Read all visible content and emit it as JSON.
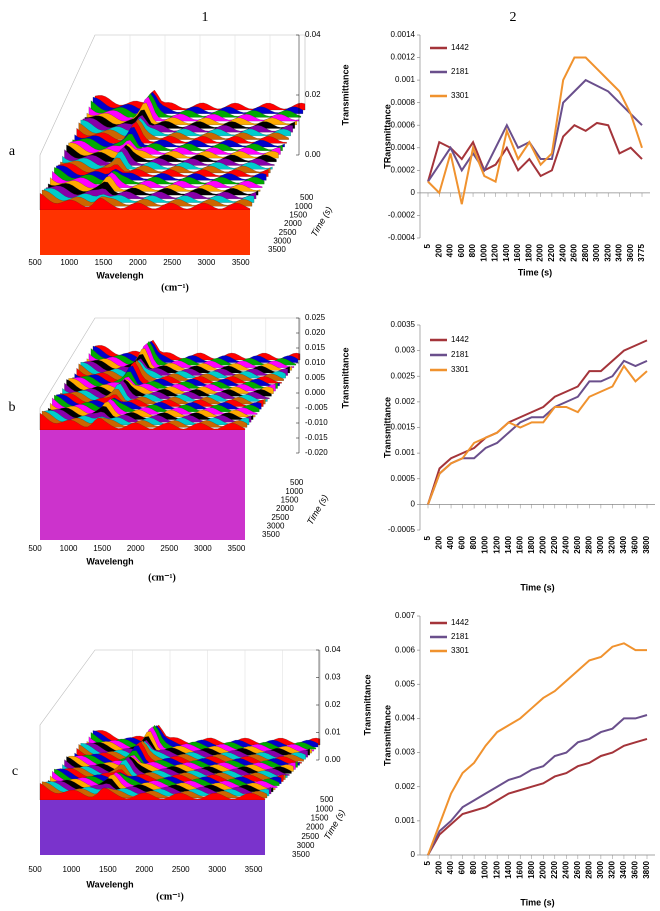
{
  "column_labels": [
    "1",
    "2"
  ],
  "row_labels": [
    "a",
    "b",
    "c"
  ],
  "chart_data": [
    {
      "type": "waterfall3d",
      "x_label": "Wavelengh",
      "x_unit": "(cm⁻¹)",
      "depth_label": "Time (s)",
      "z_label": "Transmittance",
      "xlim": [
        500,
        4000
      ],
      "xticks": [
        500,
        1000,
        1500,
        2000,
        2500,
        3000,
        3500
      ],
      "depth_lim": [
        500,
        3500
      ],
      "depth_ticks": [
        500,
        1000,
        1500,
        2000,
        2500,
        3000,
        3500
      ],
      "zlim": [
        0,
        0.04
      ],
      "zticks": [
        {
          "value": 0,
          "label": "0.00"
        },
        {
          "value": 0.02,
          "label": "0.02"
        },
        {
          "value": 0.04,
          "label": "0.04"
        }
      ]
    },
    {
      "type": "line",
      "x_label": "Time (s)",
      "y_label": "TRansmittance",
      "categories": [
        "5",
        "200",
        "400",
        "600",
        "800",
        "1000",
        "1200",
        "1400",
        "1600",
        "1800",
        "2000",
        "2200",
        "2400",
        "2600",
        "2800",
        "3000",
        "3200",
        "3400",
        "3600",
        "3775"
      ],
      "ylim": [
        -0.0004,
        0.0014
      ],
      "yticks": [
        -0.0004,
        -0.0002,
        0,
        0.0002,
        0.0004,
        0.0006,
        0.0008,
        0.001,
        0.0012,
        0.0014
      ],
      "series": [
        {
          "name": "1442",
          "color": "#a4343a",
          "values": [
            0.0001,
            0.00045,
            0.0004,
            0.0003,
            0.00045,
            0.0002,
            0.00025,
            0.0004,
            0.0002,
            0.0003,
            0.00015,
            0.0002,
            0.0005,
            0.0006,
            0.00055,
            0.00062,
            0.0006,
            0.00035,
            0.0004,
            0.0003
          ]
        },
        {
          "name": "2181",
          "color": "#6a4f8c",
          "values": [
            0.0001,
            0.00025,
            0.0004,
            0.0002,
            0.00035,
            0.0002,
            0.0004,
            0.0006,
            0.0004,
            0.00045,
            0.0003,
            0.0003,
            0.0008,
            0.0009,
            0.001,
            0.00095,
            0.0009,
            0.0008,
            0.0007,
            0.0006
          ]
        },
        {
          "name": "3301",
          "color": "#f0922e",
          "values": [
            0.0001,
            0,
            0.00035,
            -0.0001,
            0.0004,
            0.00015,
            0.0001,
            0.00055,
            0.0003,
            0.00045,
            0.00025,
            0.00035,
            0.001,
            0.0012,
            0.0012,
            0.0011,
            0.001,
            0.0009,
            0.0007,
            0.0004
          ]
        }
      ]
    },
    {
      "type": "waterfall3d",
      "x_label": "Wavelengh",
      "x_unit": "(cm⁻¹)",
      "depth_label": "Time (s)",
      "z_label": "Transmittance",
      "xlim": [
        500,
        4000
      ],
      "xticks": [
        500,
        1000,
        1500,
        2000,
        2500,
        3000,
        3500
      ],
      "depth_lim": [
        500,
        3500
      ],
      "depth_ticks": [
        500,
        1000,
        1500,
        2000,
        2500,
        3000,
        3500
      ],
      "zlim": [
        -0.02,
        0.025
      ],
      "zticks": [
        {
          "value": 0.025,
          "label": "0.025"
        },
        {
          "value": 0.02,
          "label": "0.020"
        },
        {
          "value": 0.015,
          "label": "0.015"
        },
        {
          "value": 0.01,
          "label": "0.010"
        },
        {
          "value": 0.005,
          "label": "0.005"
        },
        {
          "value": 0,
          "label": "0.000"
        },
        {
          "value": -0.005,
          "label": "-0.005"
        },
        {
          "value": -0.01,
          "label": "-0.010"
        },
        {
          "value": -0.015,
          "label": "-0.015"
        },
        {
          "value": -0.02,
          "label": "-0.020"
        }
      ]
    },
    {
      "type": "line",
      "x_label": "Time (s)",
      "y_label": "Transmittance",
      "categories": [
        "5",
        "200",
        "400",
        "600",
        "800",
        "1000",
        "1200",
        "1400",
        "1600",
        "1800",
        "2000",
        "2200",
        "2400",
        "2600",
        "2800",
        "3000",
        "3200",
        "3400",
        "3600",
        "3800"
      ],
      "ylim": [
        -0.0005,
        0.0035
      ],
      "yticks": [
        -0.0005,
        0,
        0.0005,
        0.001,
        0.0015,
        0.002,
        0.0025,
        0.003,
        0.0035
      ],
      "series": [
        {
          "name": "1442",
          "color": "#a4343a",
          "values": [
            0,
            0.0007,
            0.0009,
            0.001,
            0.0011,
            0.0013,
            0.0014,
            0.0016,
            0.0017,
            0.0018,
            0.0019,
            0.0021,
            0.0022,
            0.0023,
            0.0026,
            0.0026,
            0.0028,
            0.003,
            0.0031,
            0.0032
          ]
        },
        {
          "name": "2181",
          "color": "#6a4f8c",
          "values": [
            0,
            0.0006,
            0.0008,
            0.0009,
            0.0009,
            0.0011,
            0.0012,
            0.0014,
            0.0016,
            0.0017,
            0.0017,
            0.0019,
            0.002,
            0.0021,
            0.0024,
            0.0024,
            0.0025,
            0.0028,
            0.0027,
            0.0028
          ]
        },
        {
          "name": "3301",
          "color": "#f0922e",
          "values": [
            0,
            0.0006,
            0.0008,
            0.0009,
            0.0012,
            0.0013,
            0.0014,
            0.0016,
            0.0015,
            0.0016,
            0.0016,
            0.0019,
            0.0019,
            0.0018,
            0.0021,
            0.0022,
            0.0023,
            0.0027,
            0.0024,
            0.0026
          ]
        }
      ]
    },
    {
      "type": "waterfall3d",
      "x_label": "Wavelengh",
      "x_unit": "(cm⁻¹)",
      "depth_label": "Time (s)",
      "z_label": "Transmittance",
      "xlim": [
        500,
        4000
      ],
      "xticks": [
        500,
        1000,
        1500,
        2000,
        2500,
        3000,
        3500
      ],
      "depth_lim": [
        500,
        3500
      ],
      "depth_ticks": [
        500,
        1000,
        1500,
        2000,
        2500,
        3000,
        3500
      ],
      "zlim": [
        0,
        0.04
      ],
      "zticks": [
        {
          "value": 0,
          "label": "0.00"
        },
        {
          "value": 0.01,
          "label": "0.01"
        },
        {
          "value": 0.02,
          "label": "0.02"
        },
        {
          "value": 0.03,
          "label": "0.03"
        },
        {
          "value": 0.04,
          "label": "0.04"
        }
      ]
    },
    {
      "type": "line",
      "x_label": "Time (s)",
      "y_label": "Transmittance",
      "categories": [
        "5",
        "200",
        "400",
        "600",
        "800",
        "1000",
        "1200",
        "1400",
        "1600",
        "1800",
        "2000",
        "2200",
        "2400",
        "2600",
        "2800",
        "3000",
        "3200",
        "3400",
        "3600",
        "3800"
      ],
      "ylim": [
        0,
        0.007
      ],
      "yticks": [
        0,
        0.001,
        0.002,
        0.003,
        0.004,
        0.005,
        0.006,
        0.007
      ],
      "series": [
        {
          "name": "1442",
          "color": "#a4343a",
          "values": [
            0,
            0.0006,
            0.0009,
            0.0012,
            0.0013,
            0.0014,
            0.0016,
            0.0018,
            0.0019,
            0.002,
            0.0021,
            0.0023,
            0.0024,
            0.0026,
            0.0027,
            0.0029,
            0.003,
            0.0032,
            0.0033,
            0.0034
          ]
        },
        {
          "name": "2181",
          "color": "#6a4f8c",
          "values": [
            0,
            0.0007,
            0.001,
            0.0014,
            0.0016,
            0.0018,
            0.002,
            0.0022,
            0.0023,
            0.0025,
            0.0026,
            0.0029,
            0.003,
            0.0033,
            0.0034,
            0.0036,
            0.0037,
            0.004,
            0.004,
            0.0041
          ]
        },
        {
          "name": "3301",
          "color": "#f0922e",
          "values": [
            0,
            0.0009,
            0.0018,
            0.0024,
            0.0027,
            0.0032,
            0.0036,
            0.0038,
            0.004,
            0.0043,
            0.0046,
            0.0048,
            0.0051,
            0.0054,
            0.0057,
            0.0058,
            0.0061,
            0.0062,
            0.006,
            0.006
          ]
        }
      ]
    }
  ]
}
